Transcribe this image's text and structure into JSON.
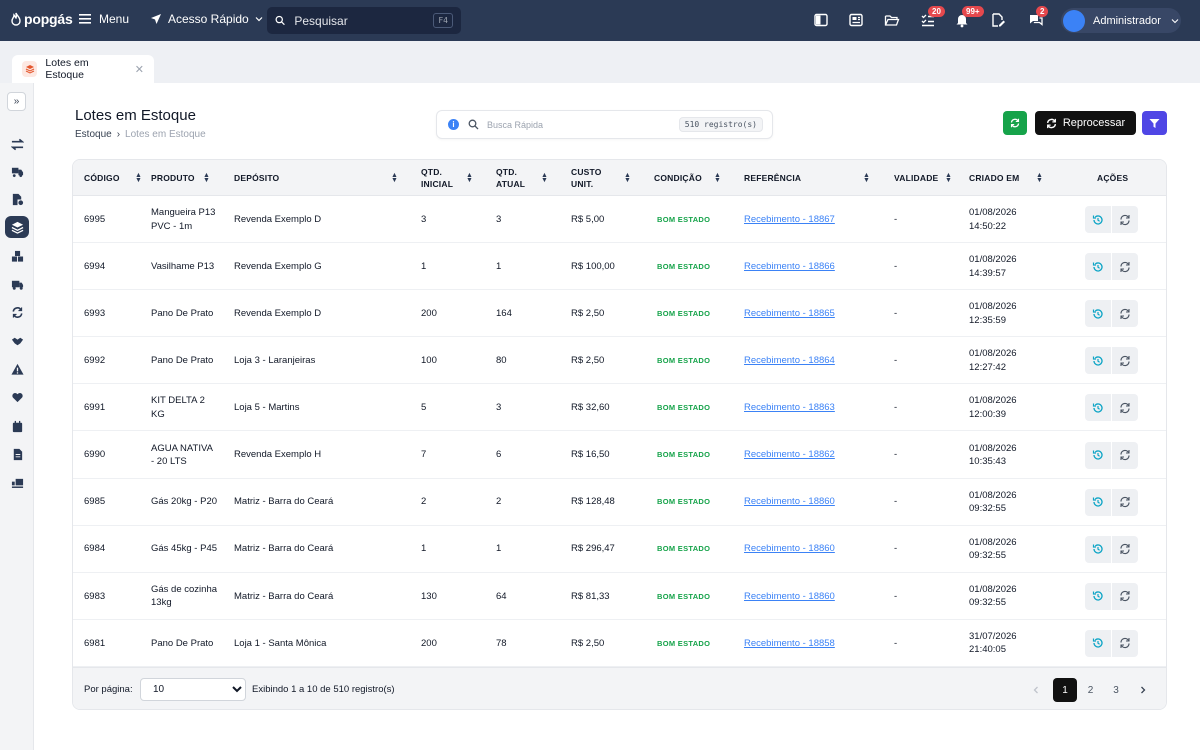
{
  "app": {
    "logo_text": "popgás"
  },
  "topbar": {
    "menu_label": "Menu",
    "quick_access_label": "Acesso Rápido",
    "search_placeholder": "Pesquisar",
    "search_shortcut": "F4",
    "badges": {
      "tasks": "20",
      "notifications": "99+",
      "messages": "2"
    },
    "user_name": "Administrador"
  },
  "tabs": [
    {
      "label": "Lotes em Estoque"
    }
  ],
  "page": {
    "title": "Lotes em Estoque",
    "breadcrumb": [
      "Estoque",
      "Lotes em Estoque"
    ],
    "breadcrumb_separator": "›",
    "quick_search_placeholder": "Busca Rápida",
    "record_count": "510 registro(s)",
    "reprocess_label": "Reprocessar"
  },
  "table": {
    "headers": {
      "codigo": "CÓDIGO",
      "produto": "PRODUTO",
      "deposito": "DEPÓSITO",
      "qtd_inicial": "QTD. INICIAL",
      "qtd_atual": "QTD. ATUAL",
      "custo_unit": "CUSTO UNIT.",
      "condicao": "CONDIÇÃO",
      "referencia": "REFERÊNCIA",
      "validade": "VALIDADE",
      "criado_em": "CRIADO EM",
      "acoes": "AÇÕES"
    },
    "rows": [
      {
        "codigo": "6995",
        "produto": "Mangueira P13 PVC - 1m",
        "deposito": "Revenda Exemplo D",
        "qtd_inicial": "3",
        "qtd_atual": "3",
        "custo": "R$ 5,00",
        "condicao": "BOM ESTADO",
        "referencia": "Recebimento - 18867",
        "validade": "-",
        "criado_data": "01/08/2026",
        "criado_hora": "14:50:22"
      },
      {
        "codigo": "6994",
        "produto": "Vasilhame P13",
        "deposito": "Revenda Exemplo G",
        "qtd_inicial": "1",
        "qtd_atual": "1",
        "custo": "R$ 100,00",
        "condicao": "BOM ESTADO",
        "referencia": "Recebimento - 18866",
        "validade": "-",
        "criado_data": "01/08/2026",
        "criado_hora": "14:39:57"
      },
      {
        "codigo": "6993",
        "produto": "Pano De Prato",
        "deposito": "Revenda Exemplo D",
        "qtd_inicial": "200",
        "qtd_atual": "164",
        "custo": "R$ 2,50",
        "condicao": "BOM ESTADO",
        "referencia": "Recebimento - 18865",
        "validade": "-",
        "criado_data": "01/08/2026",
        "criado_hora": "12:35:59"
      },
      {
        "codigo": "6992",
        "produto": "Pano De Prato",
        "deposito": "Loja 3 - Laranjeiras",
        "qtd_inicial": "100",
        "qtd_atual": "80",
        "custo": "R$ 2,50",
        "condicao": "BOM ESTADO",
        "referencia": "Recebimento - 18864",
        "validade": "-",
        "criado_data": "01/08/2026",
        "criado_hora": "12:27:42"
      },
      {
        "codigo": "6991",
        "produto": "KIT DELTA 2 KG",
        "deposito": "Loja 5 - Martins",
        "qtd_inicial": "5",
        "qtd_atual": "3",
        "custo": "R$ 32,60",
        "condicao": "BOM ESTADO",
        "referencia": "Recebimento - 18863",
        "validade": "-",
        "criado_data": "01/08/2026",
        "criado_hora": "12:00:39"
      },
      {
        "codigo": "6990",
        "produto": "AGUA NATIVA - 20 LTS",
        "deposito": "Revenda Exemplo H",
        "qtd_inicial": "7",
        "qtd_atual": "6",
        "custo": "R$ 16,50",
        "condicao": "BOM ESTADO",
        "referencia": "Recebimento - 18862",
        "validade": "-",
        "criado_data": "01/08/2026",
        "criado_hora": "10:35:43"
      },
      {
        "codigo": "6985",
        "produto": "Gás 20kg - P20",
        "deposito": "Matriz - Barra do Ceará",
        "qtd_inicial": "2",
        "qtd_atual": "2",
        "custo": "R$ 128,48",
        "condicao": "BOM ESTADO",
        "referencia": "Recebimento - 18860",
        "validade": "-",
        "criado_data": "01/08/2026",
        "criado_hora": "09:32:55"
      },
      {
        "codigo": "6984",
        "produto": "Gás 45kg - P45",
        "deposito": "Matriz - Barra do Ceará",
        "qtd_inicial": "1",
        "qtd_atual": "1",
        "custo": "R$ 296,47",
        "condicao": "BOM ESTADO",
        "referencia": "Recebimento - 18860",
        "validade": "-",
        "criado_data": "01/08/2026",
        "criado_hora": "09:32:55"
      },
      {
        "codigo": "6983",
        "produto": "Gás de cozinha 13kg",
        "deposito": "Matriz - Barra do Ceará",
        "qtd_inicial": "130",
        "qtd_atual": "64",
        "custo": "R$ 81,33",
        "condicao": "BOM ESTADO",
        "referencia": "Recebimento - 18860",
        "validade": "-",
        "criado_data": "01/08/2026",
        "criado_hora": "09:32:55"
      },
      {
        "codigo": "6981",
        "produto": "Pano De Prato",
        "deposito": "Loja 1 - Santa Mônica",
        "qtd_inicial": "200",
        "qtd_atual": "78",
        "custo": "R$ 2,50",
        "condicao": "BOM ESTADO",
        "referencia": "Recebimento - 18858",
        "validade": "-",
        "criado_data": "31/07/2026",
        "criado_hora": "21:40:05"
      }
    ]
  },
  "footer": {
    "per_page_label": "Por página:",
    "per_page_value": "10",
    "per_page_options": [
      "10"
    ],
    "showing_text": "Exibindo 1 a 10 de 510 registro(s)",
    "pages": [
      "1",
      "2",
      "3"
    ],
    "current_page": "1"
  },
  "colors": {
    "navbar": "#2b3a55",
    "accent_green": "#16a34a",
    "accent_indigo": "#4f46e5",
    "link_blue": "#3b82f6",
    "badge_red": "#e5484d"
  },
  "icons": {
    "sidebar": [
      "transfer-icon",
      "truck-box-icon",
      "document-gear-icon",
      "layers-icon",
      "boxes-icon",
      "truck-icon",
      "sync-icon",
      "handshake-icon",
      "warning-icon",
      "heart-hand-icon",
      "calendar-icon",
      "file-icon",
      "truck-ramp-icon"
    ],
    "actions": [
      "history-icon",
      "reprocess-icon"
    ]
  }
}
